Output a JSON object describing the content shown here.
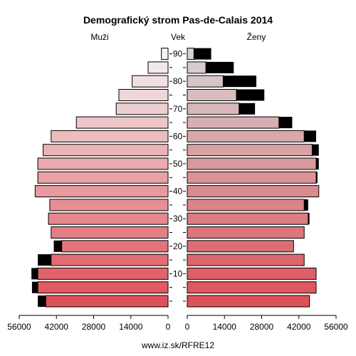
{
  "chart_data": {
    "type": "bar",
    "title": "Demografický strom Pas-de-Calais 2014",
    "left_label": "Muži",
    "center_label": "Vek",
    "right_label": "Ženy",
    "footer": "www.iz.sk/RFRE12",
    "age_ticks": [
      "10",
      "20",
      "30",
      "40",
      "50",
      "60",
      "70",
      "80",
      "90"
    ],
    "x_ticks": [
      {
        "value": 56000,
        "label": "56000"
      },
      {
        "value": 42000,
        "label": "42000"
      },
      {
        "value": 28000,
        "label": "28000"
      },
      {
        "value": 14000,
        "label": "14000"
      },
      {
        "value": 0,
        "label": "0"
      }
    ],
    "xlim": [
      0,
      56000
    ],
    "age_groups": [
      "0-4",
      "5-9",
      "10-14",
      "15-19",
      "20-24",
      "25-29",
      "30-34",
      "35-39",
      "40-44",
      "45-49",
      "50-54",
      "55-59",
      "60-64",
      "65-69",
      "70-74",
      "75-79",
      "80-84",
      "85-89",
      "90+"
    ],
    "men_base": [
      46000,
      49000,
      49000,
      44000,
      40000,
      44000,
      45000,
      44500,
      50000,
      49000,
      49000,
      47000,
      44000,
      34500,
      19500,
      18500,
      13500,
      7500,
      2500
    ],
    "men_excess": [
      3000,
      2200,
      2400,
      5000,
      3000,
      0,
      0,
      0,
      0,
      0,
      0,
      0,
      0,
      0,
      0,
      0,
      0,
      0,
      0
    ],
    "women_base": [
      46000,
      48500,
      48500,
      44000,
      40000,
      44000,
      45500,
      44000,
      49500,
      48500,
      48500,
      47000,
      44000,
      34500,
      19500,
      18500,
      13500,
      7000,
      2500
    ],
    "women_excess": [
      0,
      0,
      0,
      0,
      0,
      0,
      500,
      1500,
      0,
      500,
      1000,
      2500,
      4500,
      5000,
      6000,
      10500,
      12500,
      10500,
      6500
    ],
    "colors": {
      "excess": "#000000",
      "stroke": "#000000",
      "men_young": "#e0505a",
      "men_old": "#f2f2f2",
      "women_young": "#e05058",
      "women_old": "#d4d4d4"
    }
  }
}
